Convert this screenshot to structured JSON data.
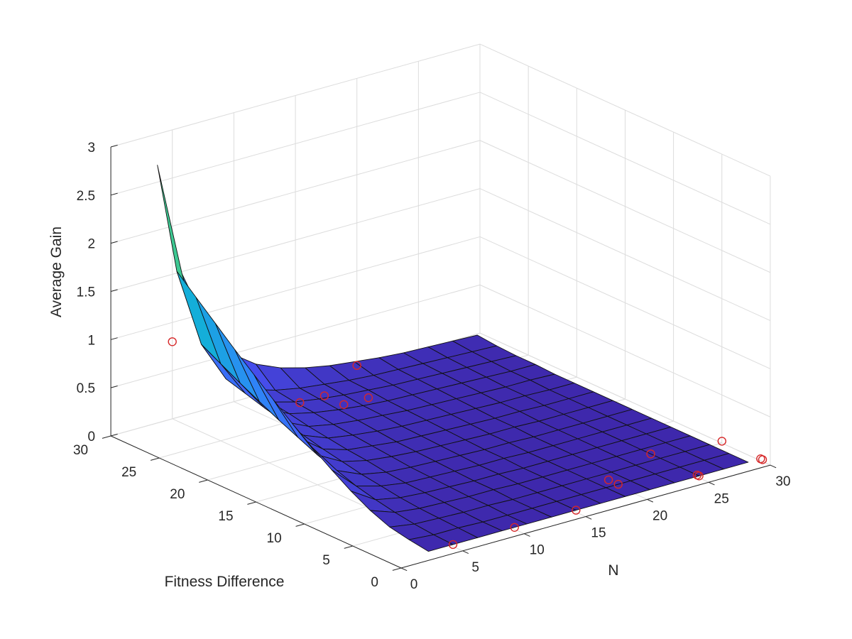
{
  "chart_data": {
    "type": "surface3d",
    "xlabel": "N",
    "ylabel": "Fitness Difference",
    "zlabel": "Average Gain",
    "xlim": [
      0,
      30
    ],
    "ylim": [
      0,
      30
    ],
    "zlim": [
      0,
      3
    ],
    "x_ticks": [
      "0",
      "5",
      "10",
      "15",
      "20",
      "25",
      "30"
    ],
    "y_ticks": [
      "0",
      "5",
      "10",
      "15",
      "20",
      "25",
      "30"
    ],
    "z_ticks": [
      "0",
      "0.5",
      "1",
      "1.5",
      "2",
      "2.5",
      "3"
    ],
    "grid": true,
    "colormap": "parula",
    "surface": {
      "N": [
        3,
        5,
        7,
        9,
        11,
        13,
        15,
        17,
        19,
        21,
        23,
        25,
        27,
        29
      ],
      "fitness_difference": [
        1,
        3,
        5,
        7,
        9,
        11,
        13,
        15,
        17,
        19,
        21,
        23,
        25,
        27,
        29
      ],
      "gain_rows": [
        [
          0.02,
          0.02,
          0.02,
          0.02,
          0.02,
          0.02,
          0.02,
          0.02,
          0.02,
          0.02,
          0.02,
          0.02,
          0.02,
          0.02
        ],
        [
          0.05,
          0.03,
          0.03,
          0.02,
          0.02,
          0.02,
          0.02,
          0.02,
          0.02,
          0.02,
          0.02,
          0.02,
          0.02,
          0.02
        ],
        [
          0.09,
          0.05,
          0.04,
          0.03,
          0.03,
          0.02,
          0.02,
          0.02,
          0.02,
          0.02,
          0.02,
          0.02,
          0.02,
          0.02
        ],
        [
          0.17,
          0.08,
          0.05,
          0.04,
          0.03,
          0.03,
          0.02,
          0.02,
          0.02,
          0.02,
          0.02,
          0.02,
          0.02,
          0.02
        ],
        [
          0.28,
          0.12,
          0.07,
          0.05,
          0.04,
          0.03,
          0.03,
          0.02,
          0.02,
          0.02,
          0.02,
          0.02,
          0.02,
          0.02
        ],
        [
          0.41,
          0.17,
          0.1,
          0.06,
          0.05,
          0.04,
          0.03,
          0.03,
          0.02,
          0.02,
          0.02,
          0.02,
          0.02,
          0.02
        ],
        [
          0.55,
          0.24,
          0.13,
          0.08,
          0.06,
          0.05,
          0.04,
          0.03,
          0.03,
          0.02,
          0.02,
          0.02,
          0.02,
          0.02
        ],
        [
          0.7,
          0.31,
          0.17,
          0.11,
          0.08,
          0.06,
          0.05,
          0.04,
          0.03,
          0.03,
          0.02,
          0.02,
          0.02,
          0.02
        ],
        [
          0.86,
          0.4,
          0.21,
          0.13,
          0.1,
          0.07,
          0.06,
          0.05,
          0.04,
          0.03,
          0.03,
          0.02,
          0.02,
          0.02
        ],
        [
          1.03,
          0.49,
          0.26,
          0.16,
          0.12,
          0.09,
          0.07,
          0.06,
          0.05,
          0.04,
          0.03,
          0.03,
          0.02,
          0.02
        ],
        [
          1.2,
          0.59,
          0.31,
          0.19,
          0.14,
          0.11,
          0.09,
          0.07,
          0.06,
          0.05,
          0.04,
          0.03,
          0.03,
          0.02
        ],
        [
          1.38,
          0.69,
          0.36,
          0.23,
          0.17,
          0.13,
          0.1,
          0.08,
          0.07,
          0.06,
          0.05,
          0.04,
          0.03,
          0.03
        ],
        [
          1.56,
          0.8,
          0.42,
          0.26,
          0.19,
          0.15,
          0.12,
          0.1,
          0.08,
          0.07,
          0.06,
          0.05,
          0.04,
          0.03
        ],
        [
          1.74,
          0.91,
          0.48,
          0.3,
          0.22,
          0.17,
          0.14,
          0.11,
          0.09,
          0.08,
          0.07,
          0.06,
          0.05,
          0.04
        ],
        [
          2.75,
          1.55,
          0.95,
          0.58,
          0.4,
          0.29,
          0.22,
          0.17,
          0.14,
          0.11,
          0.09,
          0.08,
          0.07,
          0.06
        ]
      ]
    },
    "markers": {
      "color": "#d62728",
      "shape": "circle-open",
      "points": [
        {
          "N": 5,
          "fitness_difference": 1,
          "gain": 0.02
        },
        {
          "N": 10,
          "fitness_difference": 1,
          "gain": 0.02
        },
        {
          "N": 15,
          "fitness_difference": 1,
          "gain": 0.02
        },
        {
          "N": 20,
          "fitness_difference": 3,
          "gain": 0.02
        },
        {
          "N": 20,
          "fitness_difference": 4,
          "gain": 0.02
        },
        {
          "N": 25,
          "fitness_difference": 1,
          "gain": 0.02
        },
        {
          "N": 25,
          "fitness_difference": 1.2,
          "gain": 0.02
        },
        {
          "N": 30,
          "fitness_difference": 0.8,
          "gain": 0.02
        },
        {
          "N": 30,
          "fitness_difference": 1,
          "gain": 0.02
        },
        {
          "N": 25,
          "fitness_difference": 6,
          "gain": 0.02
        },
        {
          "N": 30,
          "fitness_difference": 5,
          "gain": 0.02
        },
        {
          "N": 20,
          "fitness_difference": 30,
          "gain": 0.02
        },
        {
          "N": 15,
          "fitness_difference": 25,
          "gain": 0.02
        },
        {
          "N": 15,
          "fitness_difference": 27,
          "gain": 0.02
        },
        {
          "N": 17,
          "fitness_difference": 25,
          "gain": 0.02
        },
        {
          "N": 13,
          "fitness_difference": 27,
          "gain": 0.02
        },
        {
          "N": 5,
          "fitness_difference": 30,
          "gain": 0.8
        }
      ]
    }
  }
}
